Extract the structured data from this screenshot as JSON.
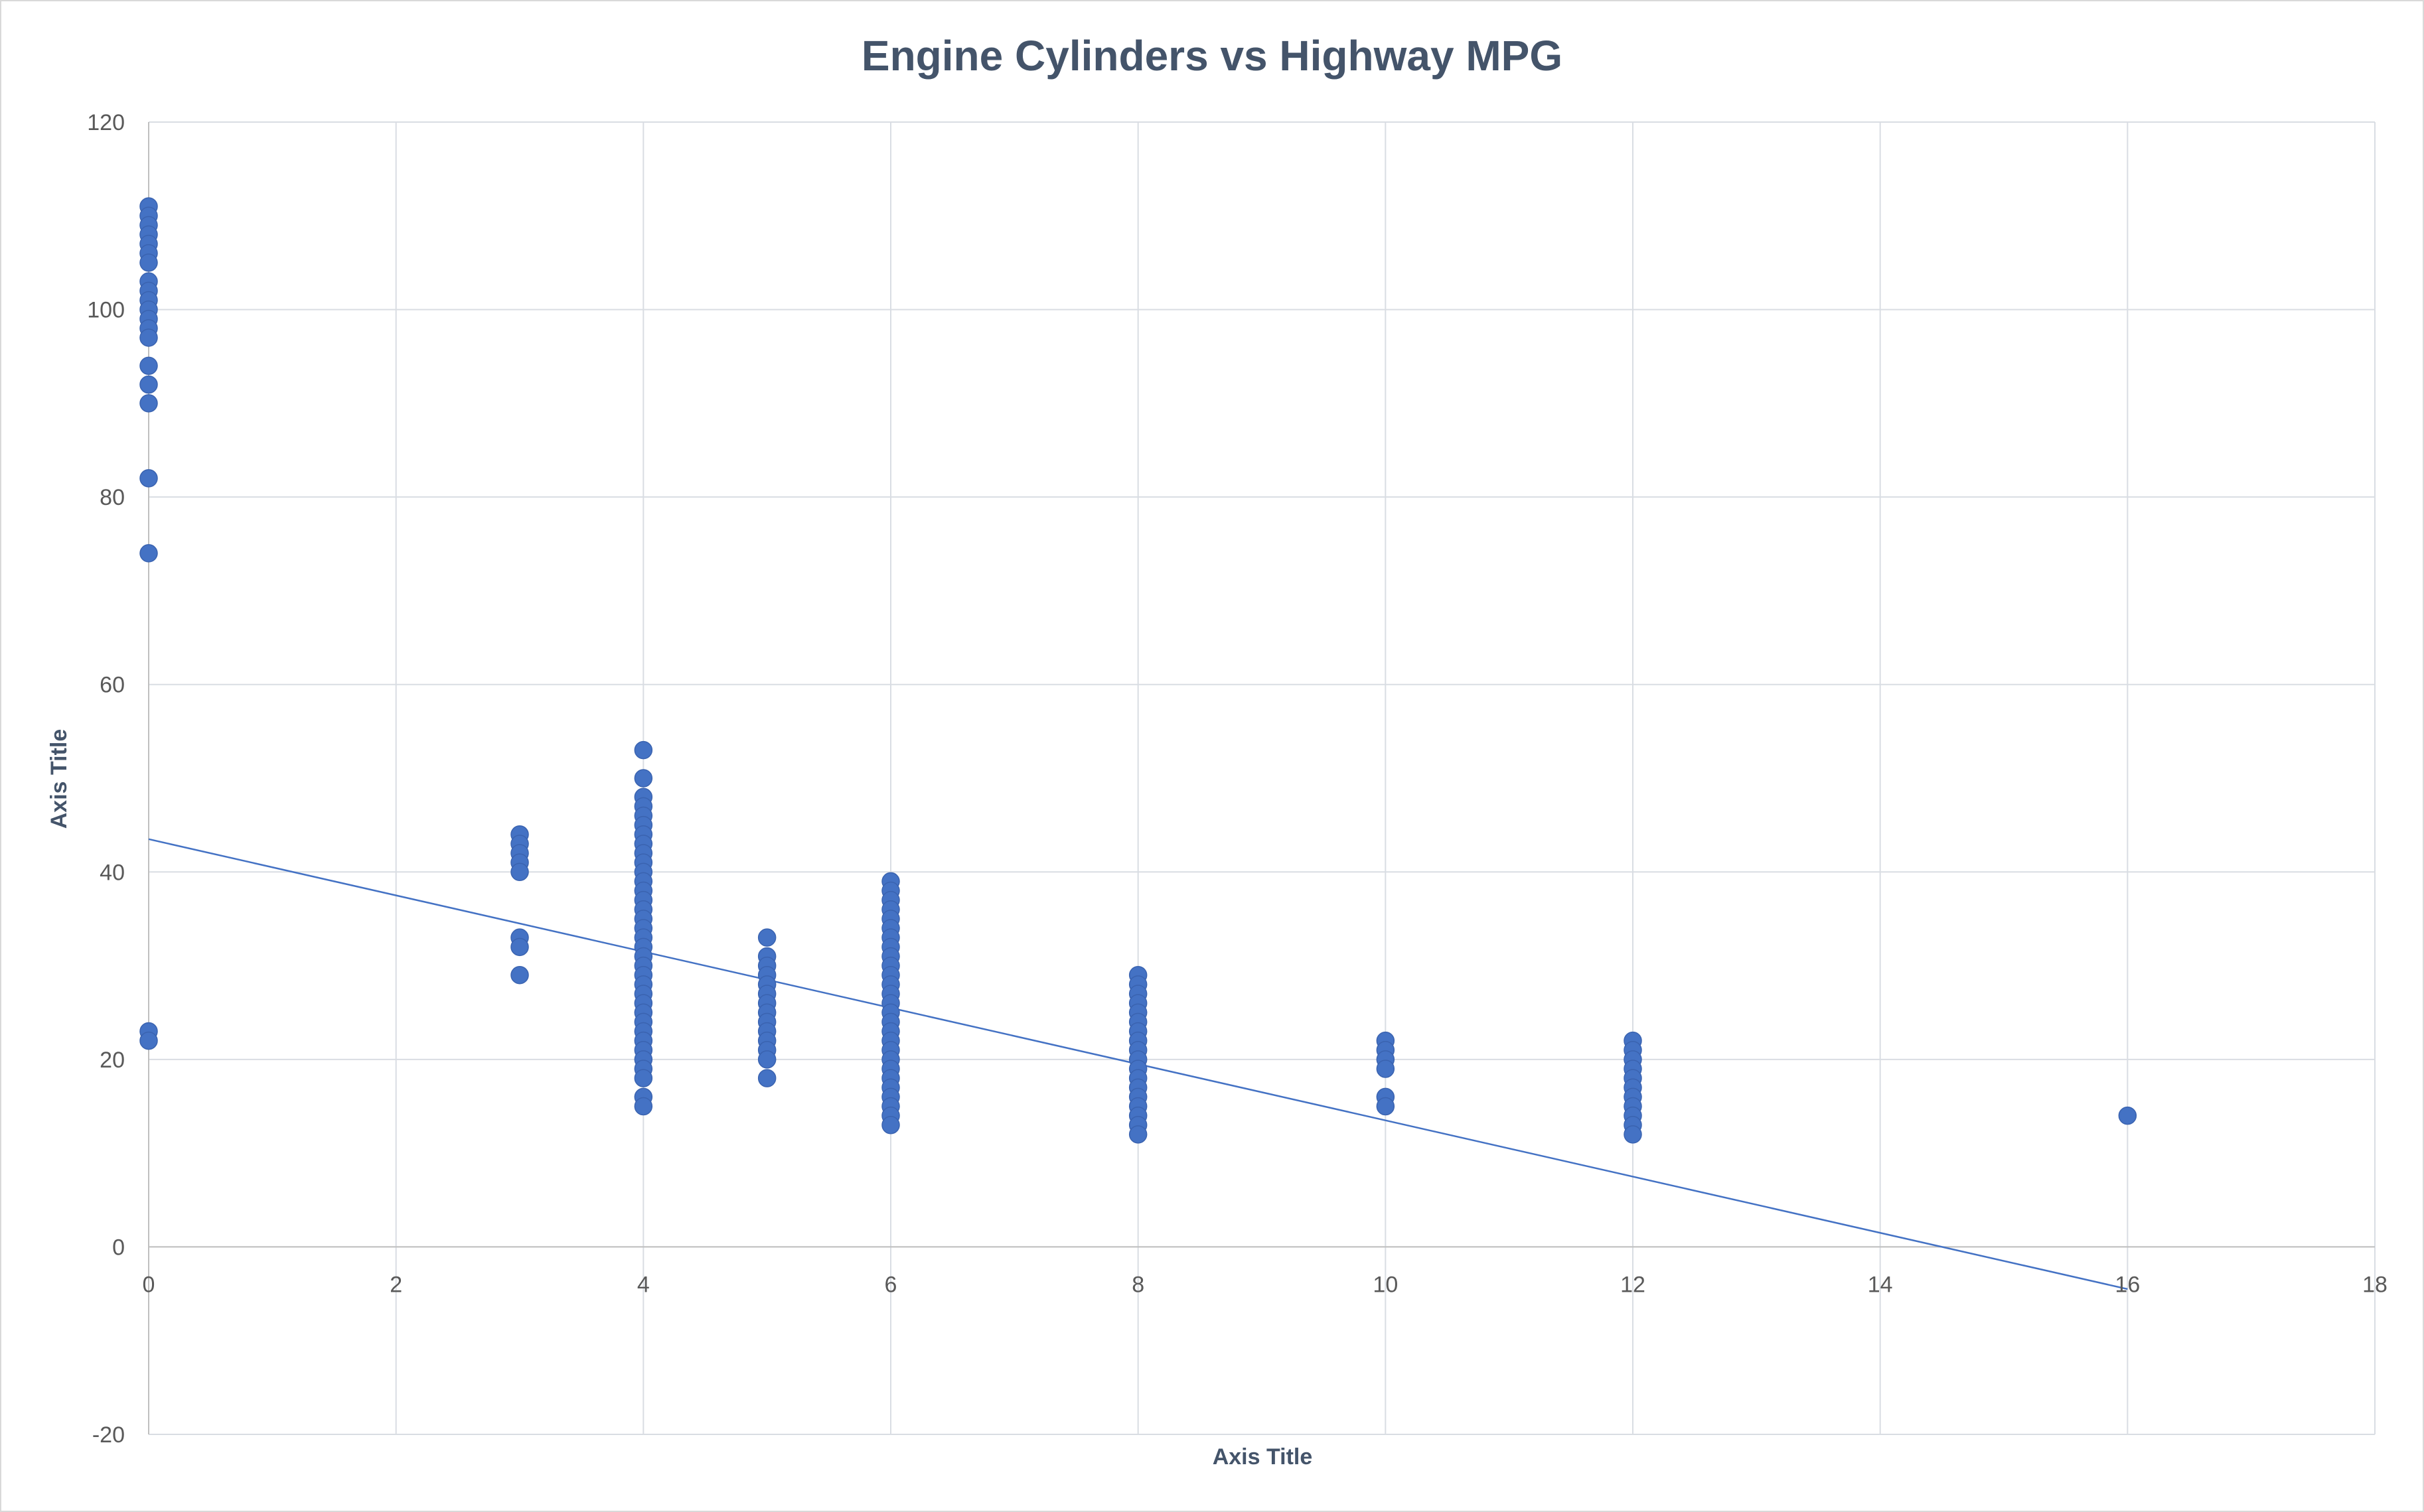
{
  "chart_data": {
    "type": "scatter",
    "title": "Engine Cylinders vs Highway MPG",
    "xlabel": "Axis Title",
    "ylabel": "Axis Title",
    "xlim": [
      0,
      18
    ],
    "ylim": [
      -20,
      120
    ],
    "x_ticks": [
      "0",
      "2",
      "4",
      "6",
      "8",
      "10",
      "12",
      "14",
      "16",
      "18"
    ],
    "y_ticks": [
      "-20",
      "0",
      "20",
      "40",
      "60",
      "80",
      "100",
      "120"
    ],
    "grid": true,
    "legend": "none",
    "marker_color": "#4472c4",
    "trendline": {
      "type": "linear",
      "color": "#4472c4",
      "intercept": 43.5,
      "slope": -3.0,
      "x_range": [
        0,
        16
      ]
    },
    "series": [
      {
        "points": [
          [
            0,
            111
          ],
          [
            0,
            110
          ],
          [
            0,
            109
          ],
          [
            0,
            108
          ],
          [
            0,
            107
          ],
          [
            0,
            106
          ],
          [
            0,
            105
          ],
          [
            0,
            103
          ],
          [
            0,
            102
          ],
          [
            0,
            101
          ],
          [
            0,
            100
          ],
          [
            0,
            99
          ],
          [
            0,
            98
          ],
          [
            0,
            97
          ],
          [
            0,
            94
          ],
          [
            0,
            92
          ],
          [
            0,
            90
          ],
          [
            0,
            82
          ],
          [
            0,
            74
          ],
          [
            0,
            23
          ],
          [
            0,
            22
          ],
          [
            3,
            44
          ],
          [
            3,
            43
          ],
          [
            3,
            42
          ],
          [
            3,
            41
          ],
          [
            3,
            40
          ],
          [
            3,
            33
          ],
          [
            3,
            32
          ],
          [
            3,
            29
          ],
          [
            4,
            53
          ],
          [
            4,
            50
          ],
          [
            4,
            48
          ],
          [
            4,
            47
          ],
          [
            4,
            46
          ],
          [
            4,
            45
          ],
          [
            4,
            44
          ],
          [
            4,
            43
          ],
          [
            4,
            42
          ],
          [
            4,
            41
          ],
          [
            4,
            40
          ],
          [
            4,
            39
          ],
          [
            4,
            38
          ],
          [
            4,
            37
          ],
          [
            4,
            36
          ],
          [
            4,
            35
          ],
          [
            4,
            34
          ],
          [
            4,
            33
          ],
          [
            4,
            32
          ],
          [
            4,
            31
          ],
          [
            4,
            30
          ],
          [
            4,
            29
          ],
          [
            4,
            28
          ],
          [
            4,
            27
          ],
          [
            4,
            26
          ],
          [
            4,
            25
          ],
          [
            4,
            24
          ],
          [
            4,
            23
          ],
          [
            4,
            22
          ],
          [
            4,
            21
          ],
          [
            4,
            20
          ],
          [
            4,
            19
          ],
          [
            4,
            18
          ],
          [
            4,
            16
          ],
          [
            4,
            15
          ],
          [
            5,
            33
          ],
          [
            5,
            31
          ],
          [
            5,
            30
          ],
          [
            5,
            29
          ],
          [
            5,
            28
          ],
          [
            5,
            27
          ],
          [
            5,
            26
          ],
          [
            5,
            25
          ],
          [
            5,
            24
          ],
          [
            5,
            23
          ],
          [
            5,
            22
          ],
          [
            5,
            21
          ],
          [
            5,
            20
          ],
          [
            5,
            18
          ],
          [
            6,
            39
          ],
          [
            6,
            38
          ],
          [
            6,
            37
          ],
          [
            6,
            36
          ],
          [
            6,
            35
          ],
          [
            6,
            34
          ],
          [
            6,
            33
          ],
          [
            6,
            32
          ],
          [
            6,
            31
          ],
          [
            6,
            30
          ],
          [
            6,
            29
          ],
          [
            6,
            28
          ],
          [
            6,
            27
          ],
          [
            6,
            26
          ],
          [
            6,
            25
          ],
          [
            6,
            24
          ],
          [
            6,
            23
          ],
          [
            6,
            22
          ],
          [
            6,
            21
          ],
          [
            6,
            20
          ],
          [
            6,
            19
          ],
          [
            6,
            18
          ],
          [
            6,
            17
          ],
          [
            6,
            16
          ],
          [
            6,
            15
          ],
          [
            6,
            14
          ],
          [
            6,
            13
          ],
          [
            8,
            29
          ],
          [
            8,
            28
          ],
          [
            8,
            27
          ],
          [
            8,
            26
          ],
          [
            8,
            25
          ],
          [
            8,
            24
          ],
          [
            8,
            23
          ],
          [
            8,
            22
          ],
          [
            8,
            21
          ],
          [
            8,
            20
          ],
          [
            8,
            19
          ],
          [
            8,
            18
          ],
          [
            8,
            17
          ],
          [
            8,
            16
          ],
          [
            8,
            15
          ],
          [
            8,
            14
          ],
          [
            8,
            13
          ],
          [
            8,
            12
          ],
          [
            10,
            22
          ],
          [
            10,
            21
          ],
          [
            10,
            20
          ],
          [
            10,
            19
          ],
          [
            10,
            16
          ],
          [
            10,
            15
          ],
          [
            12,
            22
          ],
          [
            12,
            21
          ],
          [
            12,
            20
          ],
          [
            12,
            19
          ],
          [
            12,
            18
          ],
          [
            12,
            17
          ],
          [
            12,
            16
          ],
          [
            12,
            15
          ],
          [
            12,
            14
          ],
          [
            12,
            13
          ],
          [
            12,
            12
          ],
          [
            16,
            14
          ]
        ]
      }
    ]
  }
}
